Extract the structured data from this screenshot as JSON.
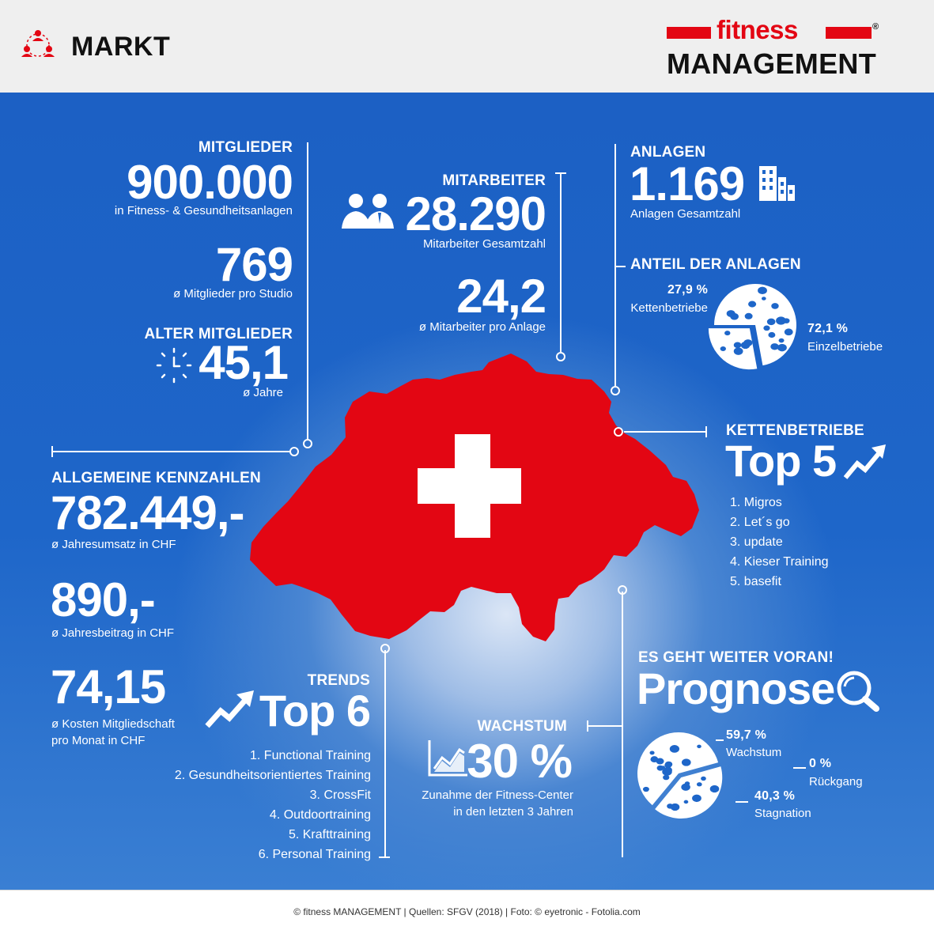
{
  "header": {
    "section": "MARKT",
    "logo_top": "fitness",
    "logo_bottom": "MANAGEMENT",
    "logo_mark": "®",
    "icon": "people-network-icon"
  },
  "mitglieder": {
    "label": "MITGLIEDER",
    "value": "900.000",
    "desc": "in Fitness- & Gesundheitsanlagen",
    "per_studio": "769",
    "per_studio_desc": "ø Mitglieder pro Studio"
  },
  "alter": {
    "label": "ALTER MITGLIEDER",
    "value": "45,1",
    "desc": "ø Jahre",
    "icon": "clock-icon"
  },
  "mitarbeiter": {
    "label": "MITARBEITER",
    "value": "28.290",
    "desc": "Mitarbeiter Gesamtzahl",
    "per_anlage": "24,2",
    "per_anlage_desc": "ø Mitarbeiter pro Anlage",
    "icon": "staff-icon"
  },
  "anlagen": {
    "label": "ANLAGEN",
    "value": "1.169",
    "desc": "Anlagen Gesamtzahl",
    "icon": "buildings-icon"
  },
  "anteil": {
    "label": "ANTEIL DER ANLAGEN",
    "ketten_pct": "27,9 %",
    "ketten_label": "Kettenbetriebe",
    "einzel_pct": "72,1 %",
    "einzel_label": "Einzelbetriebe",
    "ketten_share": 27.9,
    "einzel_share": 72.1
  },
  "ketten": {
    "label": "KETTENBETRIEBE",
    "title": "Top 5",
    "icon": "trend-up-icon",
    "items": [
      "1. Migros",
      "2. Let´s go",
      "3. update",
      "4. Kieser Training",
      "5. basefit"
    ]
  },
  "kennzahlen": {
    "label": "ALLGEMEINE KENNZAHLEN",
    "umsatz": "782.449,-",
    "umsatz_desc": "ø Jahresumsatz in CHF",
    "beitrag": "890,-",
    "beitrag_desc": "ø Jahresbeitrag in CHF",
    "kosten": "74,15",
    "kosten_desc1": "ø Kosten Mitgliedschaft",
    "kosten_desc2": "pro Monat in CHF"
  },
  "trends": {
    "label": "TRENDS",
    "title": "Top 6",
    "icon": "trend-up-icon",
    "items": [
      "1. Functional Training",
      "2. Gesundheitsorientiertes Training",
      "3. CrossFit",
      "4. Outdoortraining",
      "5. Krafttraining",
      "6. Personal Training"
    ]
  },
  "wachstum": {
    "label": "WACHSTUM",
    "value": "30 %",
    "desc1": "Zunahme der Fitness-Center",
    "desc2": "in den letzten 3 Jahren",
    "icon": "growth-chart-icon"
  },
  "prognose": {
    "label": "ES GEHT WEITER VORAN!",
    "title": "Prognose",
    "icon": "magnifier-icon",
    "wachstum_pct": "59,7 %",
    "wachstum_label": "Wachstum",
    "rueckgang_pct": "0 %",
    "rueckgang_label": "Rückgang",
    "stagnation_pct": "40,3 %",
    "stagnation_label": "Stagnation",
    "shares": [
      59.7,
      0,
      40.3
    ]
  },
  "map": {
    "icon": "swiss-map-icon",
    "flag": "swiss-cross-icon"
  },
  "colors": {
    "blue": "#1e66c9",
    "red": "#e30613",
    "white": "#ffffff"
  },
  "footer": {
    "text": "© fitness MANAGEMENT  |  Quellen: SFGV (2018)  |  Foto: © eyetronic - Fotolia.com"
  }
}
